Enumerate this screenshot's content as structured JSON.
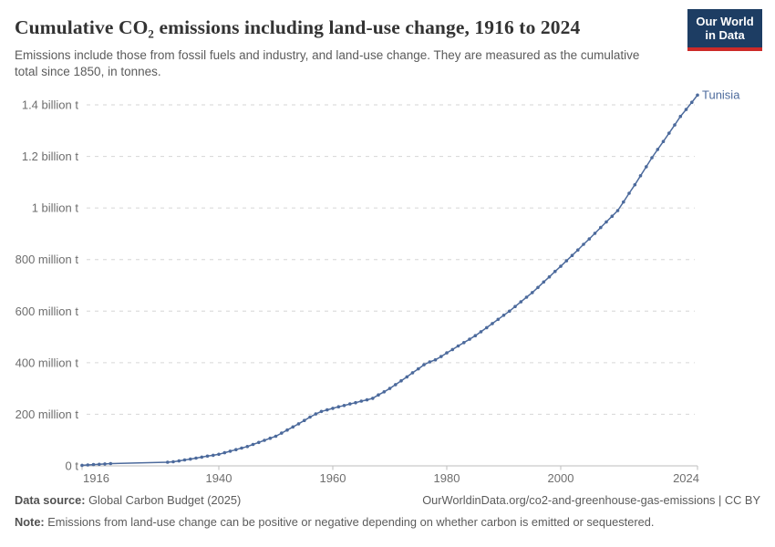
{
  "header": {
    "title": "Cumulative CO₂ emissions including land-use change, 1916 to 2024",
    "subtitle": "Emissions include those from fossil fuels and industry, and land-use change. They are measured as the cumulative total since 1850, in tonnes.",
    "logo": {
      "line1": "Our World",
      "line2": "in Data",
      "bg_color": "#1d3d63",
      "accent_color": "#cc2a28"
    }
  },
  "chart_data": {
    "type": "line",
    "title": "Cumulative CO₂ emissions including land-use change, 1916 to 2024",
    "unit": "million tonnes",
    "xlabel": "",
    "ylabel": "",
    "grid": "dashed horizontal",
    "legend_position": "end-of-line label",
    "x": {
      "range": [
        1916,
        2024
      ],
      "ticks": [
        1916,
        1940,
        1960,
        1980,
        2000,
        2024
      ]
    },
    "y": {
      "range": [
        0,
        1450
      ],
      "ticks": [
        {
          "value": 0,
          "label": "0 t"
        },
        {
          "value": 200,
          "label": "200 million t"
        },
        {
          "value": 400,
          "label": "400 million t"
        },
        {
          "value": 600,
          "label": "600 million t"
        },
        {
          "value": 800,
          "label": "800 million t"
        },
        {
          "value": 1000,
          "label": "1 billion t"
        },
        {
          "value": 1200,
          "label": "1.2 billion t"
        },
        {
          "value": 1400,
          "label": "1.4 billion t"
        }
      ]
    },
    "style": {
      "line_color": "#4C6A9C",
      "grid_color": "#d6d6d6",
      "axis_color": "#bdbdbd",
      "tick_label_color": "#6e6e6e"
    },
    "series": [
      {
        "name": "Tunisia",
        "color": "#4C6A9C",
        "points": [
          [
            1916,
            2
          ],
          [
            1917,
            3.5
          ],
          [
            1918,
            5
          ],
          [
            1919,
            6
          ],
          [
            1920,
            7.5
          ],
          [
            1921,
            9
          ],
          [
            1931,
            14
          ],
          [
            1932,
            16
          ],
          [
            1933,
            19
          ],
          [
            1934,
            23
          ],
          [
            1935,
            26
          ],
          [
            1936,
            30
          ],
          [
            1937,
            34
          ],
          [
            1938,
            38
          ],
          [
            1939,
            41
          ],
          [
            1940,
            45
          ],
          [
            1941,
            51
          ],
          [
            1942,
            57
          ],
          [
            1943,
            63
          ],
          [
            1944,
            69
          ],
          [
            1945,
            75
          ],
          [
            1946,
            83
          ],
          [
            1947,
            91
          ],
          [
            1948,
            99
          ],
          [
            1949,
            107
          ],
          [
            1950,
            115
          ],
          [
            1951,
            127
          ],
          [
            1952,
            139
          ],
          [
            1953,
            151
          ],
          [
            1954,
            163
          ],
          [
            1955,
            176
          ],
          [
            1956,
            189
          ],
          [
            1957,
            201
          ],
          [
            1958,
            211
          ],
          [
            1959,
            217
          ],
          [
            1960,
            223
          ],
          [
            1961,
            229
          ],
          [
            1962,
            234
          ],
          [
            1963,
            240
          ],
          [
            1964,
            245
          ],
          [
            1965,
            251
          ],
          [
            1966,
            256
          ],
          [
            1967,
            262
          ],
          [
            1968,
            275
          ],
          [
            1969,
            287
          ],
          [
            1970,
            300
          ],
          [
            1971,
            315
          ],
          [
            1972,
            330
          ],
          [
            1973,
            345
          ],
          [
            1974,
            361
          ],
          [
            1975,
            376
          ],
          [
            1976,
            392
          ],
          [
            1977,
            403
          ],
          [
            1978,
            411
          ],
          [
            1979,
            424
          ],
          [
            1980,
            438
          ],
          [
            1981,
            451
          ],
          [
            1982,
            465
          ],
          [
            1983,
            478
          ],
          [
            1984,
            491
          ],
          [
            1985,
            505
          ],
          [
            1986,
            520
          ],
          [
            1987,
            536
          ],
          [
            1988,
            552
          ],
          [
            1989,
            568
          ],
          [
            1990,
            584
          ],
          [
            1991,
            600
          ],
          [
            1992,
            618
          ],
          [
            1993,
            636
          ],
          [
            1994,
            654
          ],
          [
            1995,
            672
          ],
          [
            1996,
            692
          ],
          [
            1997,
            713
          ],
          [
            1998,
            733
          ],
          [
            1999,
            754
          ],
          [
            2000,
            774
          ],
          [
            2001,
            795
          ],
          [
            2002,
            816
          ],
          [
            2003,
            837
          ],
          [
            2004,
            859
          ],
          [
            2005,
            880
          ],
          [
            2006,
            902
          ],
          [
            2007,
            924
          ],
          [
            2008,
            946
          ],
          [
            2009,
            968
          ],
          [
            2010,
            990
          ],
          [
            2011,
            1023
          ],
          [
            2012,
            1057
          ],
          [
            2013,
            1090
          ],
          [
            2014,
            1125
          ],
          [
            2015,
            1160
          ],
          [
            2016,
            1195
          ],
          [
            2017,
            1227
          ],
          [
            2018,
            1258
          ],
          [
            2019,
            1290
          ],
          [
            2020,
            1322
          ],
          [
            2021,
            1355
          ],
          [
            2022,
            1382
          ],
          [
            2023,
            1410
          ],
          [
            2024,
            1438
          ]
        ]
      }
    ]
  },
  "footer": {
    "datasource_label": "Data source:",
    "datasource_text": " Global Carbon Budget (2025)",
    "attribution": "OurWorldinData.org/co2-and-greenhouse-gas-emissions | CC BY",
    "note_label": "Note:",
    "note_text": " Emissions from land-use change can be positive or negative depending on whether carbon is emitted or sequestered."
  }
}
